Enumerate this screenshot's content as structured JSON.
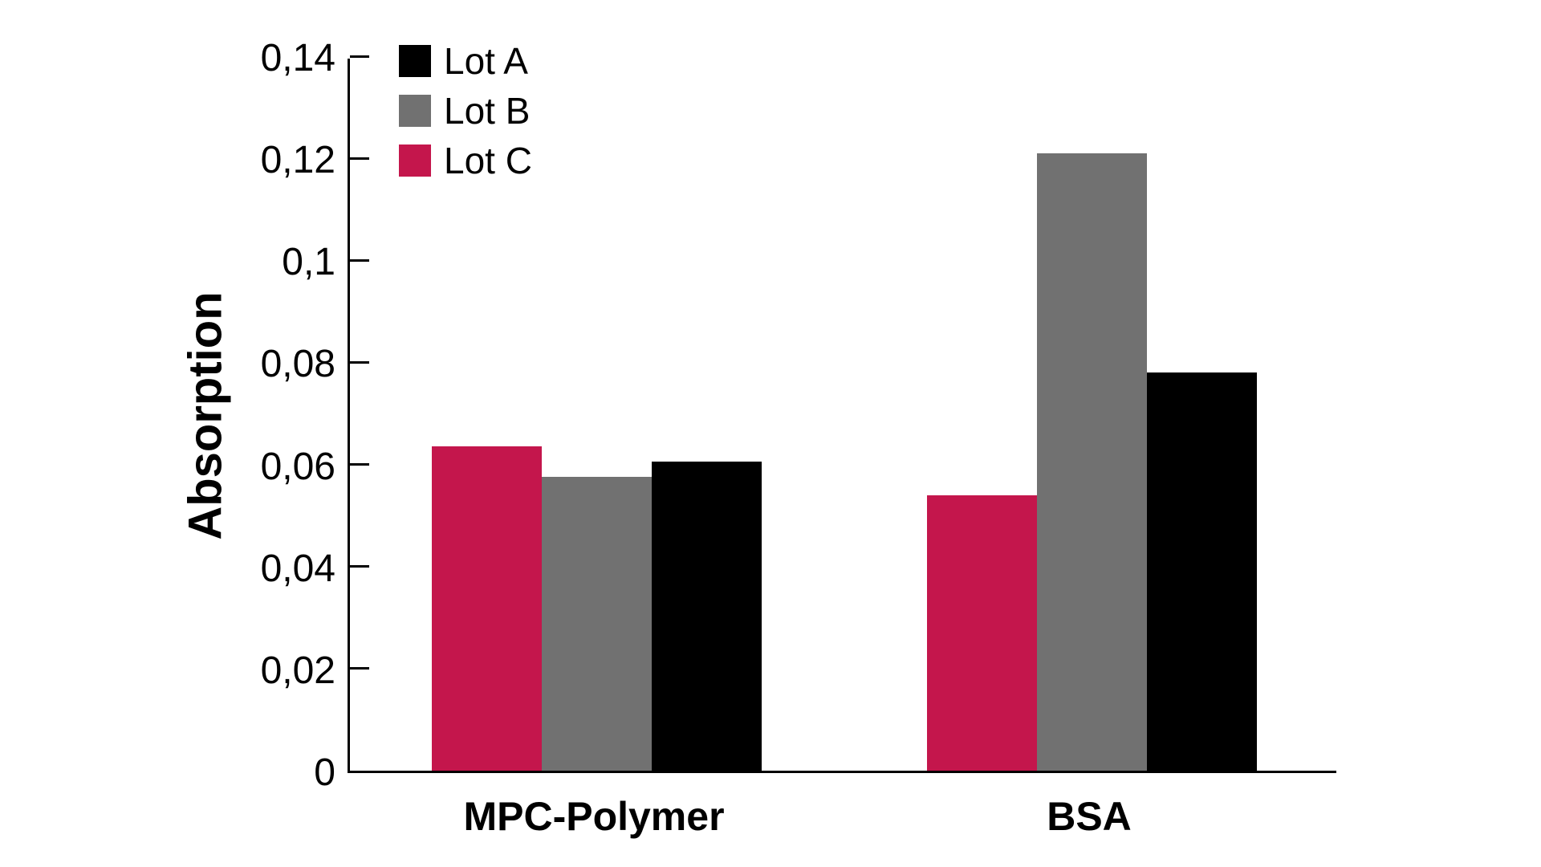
{
  "page": {
    "background": "#ffffff"
  },
  "chart_data": {
    "type": "bar",
    "title": "",
    "xlabel": "",
    "ylabel": "Absorption",
    "categories": [
      "MPC-Polymer",
      "BSA"
    ],
    "series": [
      {
        "name": "Lot A",
        "color": "#000000",
        "values": [
          0.0605,
          0.078
        ]
      },
      {
        "name": "Lot B",
        "color": "#717171",
        "values": [
          0.0575,
          0.121
        ]
      },
      {
        "name": "Lot C",
        "color": "#C4164C",
        "values": [
          0.0635,
          0.054
        ]
      }
    ],
    "bar_order_left_to_right": [
      "Lot C",
      "Lot B",
      "Lot A"
    ],
    "ylim": [
      0,
      0.14
    ],
    "yticks": [
      0,
      0.02,
      0.04,
      0.06,
      0.08,
      0.1,
      0.12,
      0.14
    ],
    "ytick_labels": [
      "0",
      "0,02",
      "0,04",
      "0,06",
      "0,08",
      "0,1",
      "0,12",
      "0,14"
    ],
    "decimal_separator": ",",
    "grid": false,
    "axis_color": "#000000",
    "legend": {
      "position": "top-left",
      "entries": [
        "Lot A",
        "Lot B",
        "Lot C"
      ]
    }
  }
}
